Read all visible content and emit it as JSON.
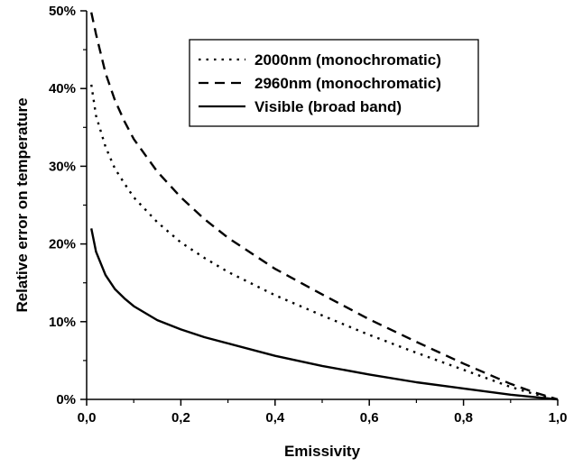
{
  "chart_data": {
    "type": "line",
    "title": "",
    "xlabel": "Emissivity",
    "ylabel": "Relative error on temperature",
    "xlim": [
      0,
      1
    ],
    "ylim": [
      0,
      50
    ],
    "x_ticks": [
      "0,0",
      "0,2",
      "0,4",
      "0,6",
      "0,8",
      "1,0"
    ],
    "y_ticks": [
      "0%",
      "10%",
      "20%",
      "30%",
      "40%",
      "50%"
    ],
    "grid": false,
    "legend_position": "top-right",
    "series": [
      {
        "name": "2000nm (monochromatic)",
        "style": "dotted",
        "color": "#000000",
        "x": [
          0.01,
          0.02,
          0.04,
          0.06,
          0.08,
          0.1,
          0.15,
          0.2,
          0.25,
          0.3,
          0.4,
          0.5,
          0.6,
          0.7,
          0.8,
          0.9,
          0.95,
          1.0
        ],
        "y": [
          40.5,
          36.5,
          32.5,
          29.7,
          27.8,
          26.0,
          22.8,
          20.2,
          18.2,
          16.4,
          13.4,
          10.8,
          8.3,
          6.0,
          3.8,
          1.6,
          0.7,
          0.0
        ]
      },
      {
        "name": "2960nm (monochromatic)",
        "style": "dashed",
        "color": "#000000",
        "x": [
          0.01,
          0.02,
          0.04,
          0.06,
          0.08,
          0.1,
          0.15,
          0.2,
          0.25,
          0.3,
          0.4,
          0.5,
          0.6,
          0.7,
          0.8,
          0.9,
          0.95,
          1.0
        ],
        "y": [
          49.8,
          47.0,
          42.0,
          38.5,
          35.8,
          33.5,
          29.3,
          26.0,
          23.2,
          20.8,
          16.8,
          13.5,
          10.3,
          7.4,
          4.6,
          2.0,
          0.9,
          0.0
        ]
      },
      {
        "name": "Visible (broad band)",
        "style": "solid",
        "color": "#000000",
        "x": [
          0.01,
          0.02,
          0.04,
          0.06,
          0.08,
          0.1,
          0.15,
          0.2,
          0.25,
          0.3,
          0.4,
          0.5,
          0.6,
          0.7,
          0.8,
          0.9,
          0.95,
          1.0
        ],
        "y": [
          22.0,
          19.0,
          16.0,
          14.2,
          13.0,
          12.0,
          10.2,
          9.0,
          8.0,
          7.2,
          5.6,
          4.3,
          3.2,
          2.2,
          1.4,
          0.6,
          0.3,
          0.0
        ]
      }
    ]
  }
}
